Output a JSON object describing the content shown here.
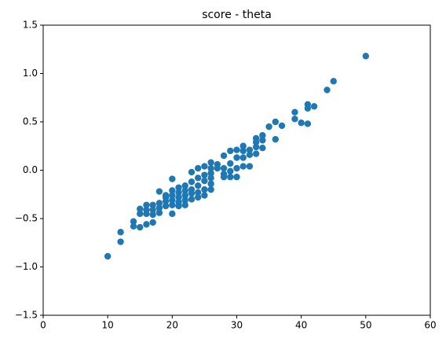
{
  "chart_data": {
    "type": "scatter",
    "title": "score - theta",
    "color": "#1f77b4",
    "x": [
      10,
      12,
      12,
      14,
      14,
      15,
      15,
      15,
      16,
      16,
      16,
      16,
      17,
      17,
      17,
      17,
      18,
      18,
      18,
      18,
      19,
      19,
      19,
      19,
      20,
      20,
      20,
      20,
      20,
      20,
      21,
      21,
      21,
      21,
      21,
      22,
      22,
      22,
      22,
      22,
      23,
      23,
      23,
      23,
      23,
      24,
      24,
      24,
      24,
      24,
      25,
      25,
      25,
      25,
      25,
      26,
      26,
      26,
      26,
      26,
      26,
      27,
      27,
      28,
      28,
      28,
      28,
      29,
      29,
      29,
      29,
      30,
      30,
      30,
      30,
      31,
      31,
      31,
      31,
      32,
      32,
      32,
      33,
      33,
      33,
      33,
      34,
      34,
      34,
      35,
      36,
      36,
      37,
      39,
      39,
      40,
      41,
      41,
      41,
      42,
      44,
      45,
      50
    ],
    "y": [
      -0.89,
      -0.64,
      -0.74,
      -0.53,
      -0.58,
      -0.4,
      -0.45,
      -0.59,
      -0.36,
      -0.45,
      -0.56,
      -0.41,
      -0.36,
      -0.41,
      -0.46,
      -0.54,
      -0.22,
      -0.34,
      -0.39,
      -0.44,
      -0.26,
      -0.32,
      -0.37,
      -0.28,
      -0.09,
      -0.21,
      -0.26,
      -0.31,
      -0.36,
      -0.45,
      -0.18,
      -0.23,
      -0.28,
      -0.33,
      -0.37,
      -0.16,
      -0.21,
      -0.26,
      -0.31,
      -0.36,
      -0.02,
      -0.12,
      -0.2,
      -0.24,
      -0.3,
      0.02,
      -0.08,
      -0.16,
      -0.23,
      -0.28,
      0.04,
      -0.05,
      -0.11,
      -0.2,
      -0.26,
      0.08,
      0.02,
      -0.03,
      -0.08,
      -0.14,
      -0.2,
      0.06,
      0.02,
      0.15,
      0.02,
      -0.04,
      -0.07,
      0.2,
      0.07,
      -0.01,
      -0.07,
      0.21,
      0.13,
      0.02,
      -0.07,
      0.25,
      0.2,
      0.13,
      0.04,
      0.21,
      0.16,
      0.04,
      0.33,
      0.29,
      0.24,
      0.17,
      0.36,
      0.31,
      0.23,
      0.45,
      0.5,
      0.32,
      0.46,
      0.6,
      0.53,
      0.49,
      0.64,
      0.68,
      0.48,
      0.66,
      0.83,
      0.92,
      1.18
    ],
    "xlim": [
      0,
      60
    ],
    "xticks": [
      0,
      10,
      20,
      30,
      40,
      50,
      60
    ],
    "ylim": [
      -1.5,
      1.5
    ],
    "yticks": [
      {
        "value": -1.5,
        "label": "−1.5"
      },
      {
        "value": -1,
        "label": "−1.0"
      },
      {
        "value": -0.5,
        "label": "−0.5"
      },
      {
        "value": 0,
        "label": "0.0"
      },
      0.5,
      {
        "value": 1,
        "label": "1.0"
      },
      1.5
    ]
  }
}
